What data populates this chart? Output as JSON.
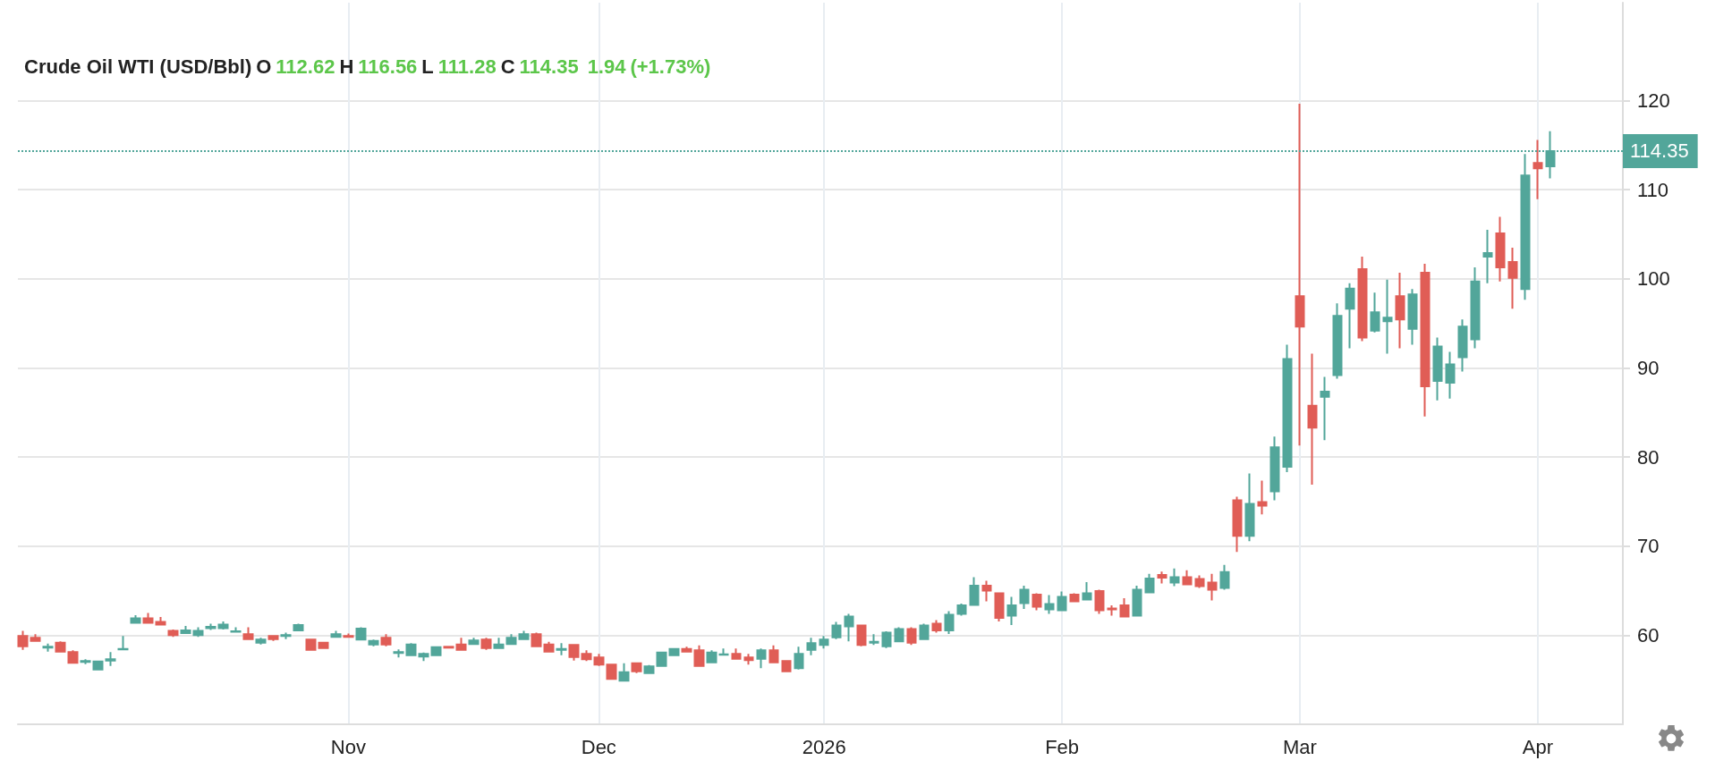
{
  "chart_data": {
    "type": "candlestick",
    "title": "Crude Oil WTI (USD/Bbl)",
    "subtitle": "O 112.62 H 116.56 L 111.28 C 114.35  1.94 (+1.73%)",
    "categories": [
      null,
      null,
      null,
      null,
      null,
      null,
      null,
      null,
      null,
      null,
      null,
      null,
      null,
      null,
      null,
      null,
      null,
      null,
      null,
      null,
      null,
      null,
      null,
      null,
      null,
      null,
      "Nov",
      null,
      null,
      null,
      null,
      null,
      null,
      null,
      null,
      null,
      null,
      null,
      null,
      null,
      null,
      null,
      null,
      null,
      null,
      null,
      "Dec",
      null,
      null,
      null,
      null,
      null,
      null,
      null,
      null,
      null,
      null,
      null,
      null,
      null,
      null,
      null,
      null,
      null,
      "2026",
      null,
      null,
      null,
      null,
      null,
      null,
      null,
      null,
      null,
      null,
      null,
      null,
      null,
      null,
      null,
      null,
      null,
      null,
      "Feb",
      null,
      null,
      null,
      null,
      null,
      null,
      null,
      null,
      null,
      null,
      null,
      null,
      null,
      null,
      null,
      null,
      null,
      null,
      "Mar",
      null,
      null,
      null,
      null,
      null,
      null,
      null,
      null,
      null,
      null,
      null,
      null,
      null,
      null,
      null,
      null,
      null,
      null,
      "Apr",
      null
    ],
    "ohlc": [
      [
        59.9,
        60.5,
        58.35,
        58.75
      ],
      [
        59.7,
        60.1,
        59.35,
        59.35
      ],
      [
        58.6,
        59.05,
        58.15,
        58.7
      ],
      [
        59.15,
        59.3,
        58.15,
        58.15
      ],
      [
        58.1,
        58.3,
        56.9,
        56.9
      ],
      [
        57.0,
        57.3,
        56.75,
        57.1
      ],
      [
        56.15,
        57.05,
        56.15,
        57.05
      ],
      [
        57.15,
        58.1,
        56.55,
        57.3
      ],
      [
        58.4,
        59.9,
        58.4,
        58.45
      ],
      [
        61.4,
        62.25,
        61.4,
        61.9
      ],
      [
        61.9,
        62.5,
        61.4,
        61.4
      ],
      [
        61.5,
        62.05,
        61.2,
        61.2
      ],
      [
        60.5,
        60.65,
        59.8,
        60.0
      ],
      [
        60.25,
        61.05,
        60.25,
        60.55
      ],
      [
        60.0,
        60.9,
        59.8,
        60.5
      ],
      [
        60.8,
        61.3,
        60.6,
        60.95
      ],
      [
        60.8,
        61.55,
        60.65,
        61.2
      ],
      [
        60.4,
        60.9,
        60.4,
        60.45
      ],
      [
        60.1,
        60.9,
        59.55,
        59.55
      ],
      [
        59.15,
        59.7,
        58.95,
        59.5
      ],
      [
        59.9,
        59.9,
        59.35,
        59.55
      ],
      [
        59.9,
        60.3,
        59.55,
        60.0
      ],
      [
        60.55,
        61.3,
        60.55,
        61.15
      ],
      [
        59.5,
        59.5,
        58.35,
        58.35
      ],
      [
        59.15,
        59.15,
        58.55,
        58.55
      ],
      [
        59.8,
        60.5,
        59.8,
        60.1
      ],
      [
        59.9,
        60.2,
        59.8,
        59.8
      ],
      [
        59.5,
        60.9,
        59.4,
        60.75
      ],
      [
        58.95,
        59.5,
        58.75,
        59.35
      ],
      [
        59.7,
        60.1,
        58.75,
        58.95
      ],
      [
        58.0,
        58.4,
        57.5,
        58.1
      ],
      [
        57.75,
        59.1,
        57.75,
        58.95
      ],
      [
        57.6,
        58.05,
        57.1,
        57.9
      ],
      [
        57.75,
        58.65,
        57.75,
        58.65
      ],
      [
        58.7,
        58.7,
        58.6,
        58.6
      ],
      [
        58.95,
        59.7,
        58.35,
        58.35
      ],
      [
        59.0,
        59.7,
        59.0,
        59.4
      ],
      [
        59.5,
        59.7,
        58.35,
        58.55
      ],
      [
        58.55,
        59.7,
        58.55,
        58.95
      ],
      [
        59.0,
        60.1,
        59.0,
        59.7
      ],
      [
        59.55,
        60.5,
        59.55,
        60.1
      ],
      [
        60.1,
        60.3,
        58.75,
        58.75
      ],
      [
        58.95,
        59.25,
        58.15,
        58.15
      ],
      [
        58.35,
        59.1,
        57.75,
        58.45
      ],
      [
        58.9,
        58.9,
        57.15,
        57.55
      ],
      [
        57.9,
        58.3,
        57.1,
        57.3
      ],
      [
        57.5,
        57.9,
        56.55,
        56.7
      ],
      [
        56.7,
        56.7,
        55.1,
        55.1
      ],
      [
        54.9,
        56.85,
        54.9,
        55.85
      ],
      [
        56.85,
        56.85,
        55.75,
        55.95
      ],
      [
        55.75,
        56.65,
        55.75,
        56.5
      ],
      [
        56.55,
        58.05,
        56.55,
        58.05
      ],
      [
        57.75,
        58.45,
        57.75,
        58.45
      ],
      [
        58.45,
        58.7,
        58.15,
        58.15
      ],
      [
        58.3,
        58.85,
        56.55,
        56.55
      ],
      [
        56.95,
        58.3,
        56.95,
        58.05
      ],
      [
        57.8,
        58.5,
        57.75,
        57.85
      ],
      [
        57.9,
        58.5,
        57.35,
        57.35
      ],
      [
        57.5,
        57.9,
        56.7,
        57.2
      ],
      [
        57.35,
        58.5,
        56.3,
        58.3
      ],
      [
        58.3,
        58.85,
        56.95,
        56.95
      ],
      [
        57.1,
        57.2,
        55.95,
        55.95
      ],
      [
        56.3,
        58.7,
        56.15,
        57.9
      ],
      [
        58.35,
        59.7,
        57.75,
        59.1
      ],
      [
        58.9,
        59.9,
        58.5,
        59.5
      ],
      [
        59.75,
        61.5,
        59.55,
        61.1
      ],
      [
        61.0,
        62.4,
        59.3,
        62.1
      ],
      [
        61.1,
        61.1,
        58.75,
        58.9
      ],
      [
        59.15,
        60.1,
        58.9,
        59.25
      ],
      [
        58.75,
        60.45,
        58.55,
        60.3
      ],
      [
        59.3,
        60.9,
        59.3,
        60.7
      ],
      [
        60.7,
        60.9,
        58.9,
        59.15
      ],
      [
        59.55,
        61.3,
        59.55,
        61.1
      ],
      [
        61.3,
        61.7,
        60.3,
        60.55
      ],
      [
        60.55,
        62.7,
        60.15,
        62.3
      ],
      [
        62.4,
        63.55,
        62.2,
        63.35
      ],
      [
        63.4,
        66.5,
        63.4,
        65.55
      ],
      [
        65.55,
        66.1,
        63.8,
        65.0
      ],
      [
        64.7,
        64.7,
        61.55,
        61.95
      ],
      [
        62.2,
        64.3,
        61.15,
        63.35
      ],
      [
        63.6,
        65.55,
        62.95,
        65.1
      ],
      [
        64.55,
        64.7,
        62.8,
        63.2
      ],
      [
        62.9,
        64.5,
        62.4,
        63.5
      ],
      [
        62.8,
        64.9,
        62.8,
        64.3
      ],
      [
        64.55,
        64.7,
        63.8,
        63.8
      ],
      [
        64.0,
        65.95,
        64.0,
        64.7
      ],
      [
        64.95,
        65.1,
        62.4,
        62.8
      ],
      [
        63.0,
        63.35,
        62.2,
        62.9
      ],
      [
        63.35,
        64.15,
        62.0,
        62.1
      ],
      [
        62.2,
        65.55,
        62.2,
        65.1
      ],
      [
        64.8,
        66.9,
        64.8,
        66.35
      ],
      [
        66.75,
        67.15,
        65.8,
        66.45
      ],
      [
        65.9,
        67.5,
        65.5,
        66.5
      ],
      [
        66.5,
        67.3,
        65.7,
        65.7
      ],
      [
        66.3,
        66.7,
        65.3,
        65.5
      ],
      [
        65.9,
        66.9,
        63.9,
        65.1
      ],
      [
        65.3,
        67.9,
        65.1,
        67.1
      ],
      [
        75.15,
        75.55,
        69.35,
        71.15
      ],
      [
        71.15,
        78.15,
        70.55,
        74.75
      ],
      [
        74.95,
        77.35,
        73.55,
        74.55
      ],
      [
        76.15,
        82.3,
        75.15,
        81.1
      ],
      [
        78.9,
        92.6,
        78.3,
        91.0
      ],
      [
        98.05,
        119.65,
        81.3,
        94.65
      ],
      [
        85.75,
        91.6,
        76.9,
        83.3
      ],
      [
        86.75,
        89.0,
        81.9,
        87.35
      ],
      [
        89.2,
        97.25,
        88.8,
        95.85
      ],
      [
        96.65,
        99.5,
        92.2,
        98.9
      ],
      [
        101.1,
        102.5,
        93.0,
        93.4
      ],
      [
        94.2,
        98.45,
        94.0,
        96.25
      ],
      [
        95.25,
        99.9,
        91.6,
        95.65
      ],
      [
        98.05,
        100.7,
        92.2,
        95.45
      ],
      [
        94.4,
        98.85,
        92.6,
        98.25
      ],
      [
        100.7,
        101.7,
        84.55,
        87.95
      ],
      [
        88.55,
        93.4,
        86.35,
        92.4
      ],
      [
        88.35,
        91.8,
        86.55,
        90.4
      ],
      [
        91.2,
        95.45,
        89.6,
        94.65
      ],
      [
        93.2,
        101.3,
        92.2,
        99.7
      ],
      [
        102.5,
        105.5,
        99.5,
        102.9
      ],
      [
        105.1,
        106.95,
        99.7,
        101.3
      ],
      [
        101.9,
        103.5,
        96.65,
        100.1
      ],
      [
        98.85,
        114.0,
        97.65,
        111.6
      ],
      [
        113.0,
        115.6,
        108.95,
        112.4
      ],
      [
        112.62,
        116.56,
        111.28,
        114.35
      ]
    ],
    "colors": [
      "#e05d56",
      "#e05d56",
      "#52a69a",
      "#e05d56",
      "#e05d56",
      "#52a69a",
      "#52a69a",
      "#52a69a",
      "#52a69a",
      "#52a69a",
      "#e05d56",
      "#e05d56",
      "#e05d56",
      "#52a69a",
      "#52a69a",
      "#52a69a",
      "#52a69a",
      "#52a69a",
      "#e05d56",
      "#52a69a",
      "#e05d56",
      "#52a69a",
      "#52a69a",
      "#e05d56",
      "#e05d56",
      "#52a69a",
      "#e05d56",
      "#52a69a",
      "#52a69a",
      "#e05d56",
      "#52a69a",
      "#52a69a",
      "#52a69a",
      "#52a69a",
      "#e05d56",
      "#e05d56",
      "#52a69a",
      "#e05d56",
      "#52a69a",
      "#52a69a",
      "#52a69a",
      "#e05d56",
      "#e05d56",
      "#52a69a",
      "#e05d56",
      "#e05d56",
      "#e05d56",
      "#e05d56",
      "#52a69a",
      "#e05d56",
      "#52a69a",
      "#52a69a",
      "#52a69a",
      "#e05d56",
      "#e05d56",
      "#52a69a",
      "#52a69a",
      "#e05d56",
      "#e05d56",
      "#52a69a",
      "#e05d56",
      "#e05d56",
      "#52a69a",
      "#52a69a",
      "#52a69a",
      "#52a69a",
      "#52a69a",
      "#e05d56",
      "#52a69a",
      "#52a69a",
      "#52a69a",
      "#e05d56",
      "#52a69a",
      "#e05d56",
      "#52a69a",
      "#52a69a",
      "#52a69a",
      "#e05d56",
      "#e05d56",
      "#52a69a",
      "#52a69a",
      "#e05d56",
      "#52a69a",
      "#52a69a",
      "#e05d56",
      "#52a69a",
      "#e05d56",
      "#e05d56",
      "#e05d56",
      "#52a69a",
      "#52a69a",
      "#e05d56",
      "#52a69a",
      "#e05d56",
      "#e05d56",
      "#e05d56",
      "#52a69a",
      "#e05d56",
      "#52a69a",
      "#e05d56",
      "#52a69a",
      "#52a69a",
      "#e05d56",
      "#e05d56",
      "#52a69a",
      "#52a69a",
      "#52a69a",
      "#e05d56",
      "#52a69a",
      "#52a69a",
      "#e05d56",
      "#52a69a",
      "#e05d56",
      "#52a69a",
      "#52a69a",
      "#52a69a",
      "#52a69a",
      "#52a69a",
      "#e05d56",
      "#e05d56",
      "#52a69a",
      "#e05d56",
      "#52a69a"
    ],
    "ylim": [
      50,
      131
    ],
    "yticks": [
      60,
      70,
      80,
      90,
      100,
      110,
      120
    ],
    "grid": true,
    "ref_lines": [
      {
        "axis": "y",
        "value": 114.35,
        "label": "114.35",
        "color": "#52a69a",
        "line_style": "dotted"
      }
    ]
  }
}
